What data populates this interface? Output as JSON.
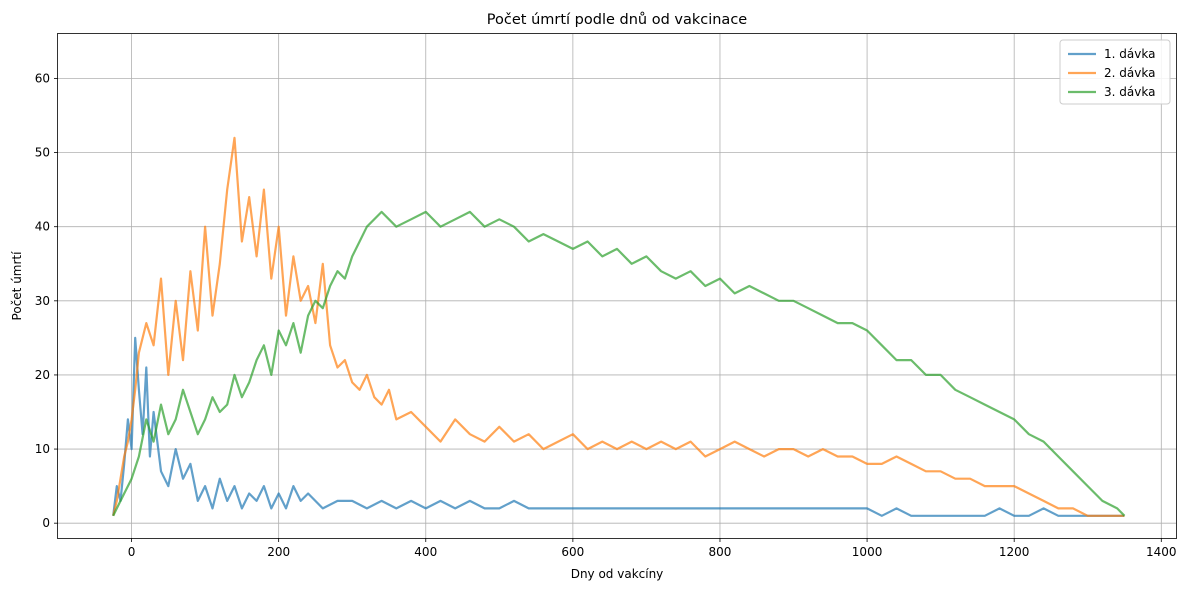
{
  "chart_data": {
    "type": "line",
    "title": "Počet úmrtí podle dnů od vakcinace",
    "xlabel": "Dny od vakcíny",
    "ylabel": "Počet úmrtí",
    "xlim": [
      -100,
      1420
    ],
    "ylim": [
      -2,
      66
    ],
    "xticks": [
      0,
      200,
      400,
      600,
      800,
      1000,
      1200,
      1400
    ],
    "yticks": [
      0,
      10,
      20,
      30,
      40,
      50,
      60
    ],
    "grid": true,
    "legend_position": "top-right",
    "series": [
      {
        "name": "1. dávka",
        "color": "#1f77b4",
        "points": [
          [
            -25,
            1
          ],
          [
            -20,
            5
          ],
          [
            -15,
            3
          ],
          [
            -10,
            8
          ],
          [
            -5,
            14
          ],
          [
            0,
            10
          ],
          [
            5,
            25
          ],
          [
            10,
            18
          ],
          [
            15,
            12
          ],
          [
            20,
            21
          ],
          [
            25,
            9
          ],
          [
            30,
            15
          ],
          [
            40,
            7
          ],
          [
            50,
            5
          ],
          [
            60,
            10
          ],
          [
            70,
            6
          ],
          [
            80,
            8
          ],
          [
            90,
            3
          ],
          [
            100,
            5
          ],
          [
            110,
            2
          ],
          [
            120,
            6
          ],
          [
            130,
            3
          ],
          [
            140,
            5
          ],
          [
            150,
            2
          ],
          [
            160,
            4
          ],
          [
            170,
            3
          ],
          [
            180,
            5
          ],
          [
            190,
            2
          ],
          [
            200,
            4
          ],
          [
            210,
            2
          ],
          [
            220,
            5
          ],
          [
            230,
            3
          ],
          [
            240,
            4
          ],
          [
            260,
            2
          ],
          [
            280,
            3
          ],
          [
            300,
            3
          ],
          [
            320,
            2
          ],
          [
            340,
            3
          ],
          [
            360,
            2
          ],
          [
            380,
            3
          ],
          [
            400,
            2
          ],
          [
            420,
            3
          ],
          [
            440,
            2
          ],
          [
            460,
            3
          ],
          [
            480,
            2
          ],
          [
            500,
            2
          ],
          [
            520,
            3
          ],
          [
            540,
            2
          ],
          [
            560,
            2
          ],
          [
            580,
            2
          ],
          [
            600,
            2
          ],
          [
            620,
            2
          ],
          [
            640,
            2
          ],
          [
            660,
            2
          ],
          [
            680,
            2
          ],
          [
            700,
            2
          ],
          [
            720,
            2
          ],
          [
            740,
            2
          ],
          [
            760,
            2
          ],
          [
            780,
            2
          ],
          [
            800,
            2
          ],
          [
            820,
            2
          ],
          [
            840,
            2
          ],
          [
            860,
            2
          ],
          [
            880,
            2
          ],
          [
            900,
            2
          ],
          [
            920,
            2
          ],
          [
            940,
            2
          ],
          [
            960,
            2
          ],
          [
            980,
            2
          ],
          [
            1000,
            2
          ],
          [
            1020,
            1
          ],
          [
            1040,
            2
          ],
          [
            1060,
            1
          ],
          [
            1080,
            1
          ],
          [
            1100,
            1
          ],
          [
            1120,
            1
          ],
          [
            1140,
            1
          ],
          [
            1160,
            1
          ],
          [
            1180,
            2
          ],
          [
            1200,
            1
          ],
          [
            1220,
            1
          ],
          [
            1240,
            2
          ],
          [
            1260,
            1
          ],
          [
            1280,
            1
          ],
          [
            1300,
            1
          ],
          [
            1320,
            1
          ],
          [
            1350,
            1
          ]
        ]
      },
      {
        "name": "2. dávka",
        "color": "#ff7f0e",
        "points": [
          [
            -25,
            1
          ],
          [
            -20,
            3
          ],
          [
            -15,
            6
          ],
          [
            -10,
            9
          ],
          [
            -5,
            11
          ],
          [
            0,
            14
          ],
          [
            5,
            18
          ],
          [
            10,
            23
          ],
          [
            20,
            27
          ],
          [
            30,
            24
          ],
          [
            40,
            33
          ],
          [
            50,
            20
          ],
          [
            60,
            30
          ],
          [
            70,
            22
          ],
          [
            80,
            34
          ],
          [
            90,
            26
          ],
          [
            100,
            40
          ],
          [
            110,
            28
          ],
          [
            120,
            35
          ],
          [
            130,
            45
          ],
          [
            140,
            52
          ],
          [
            150,
            38
          ],
          [
            160,
            44
          ],
          [
            170,
            36
          ],
          [
            180,
            45
          ],
          [
            190,
            33
          ],
          [
            200,
            40
          ],
          [
            210,
            28
          ],
          [
            220,
            36
          ],
          [
            230,
            30
          ],
          [
            240,
            32
          ],
          [
            250,
            27
          ],
          [
            260,
            35
          ],
          [
            270,
            24
          ],
          [
            280,
            21
          ],
          [
            290,
            22
          ],
          [
            300,
            19
          ],
          [
            310,
            18
          ],
          [
            320,
            20
          ],
          [
            330,
            17
          ],
          [
            340,
            16
          ],
          [
            350,
            18
          ],
          [
            360,
            14
          ],
          [
            380,
            15
          ],
          [
            400,
            13
          ],
          [
            420,
            11
          ],
          [
            440,
            14
          ],
          [
            460,
            12
          ],
          [
            480,
            11
          ],
          [
            500,
            13
          ],
          [
            520,
            11
          ],
          [
            540,
            12
          ],
          [
            560,
            10
          ],
          [
            580,
            11
          ],
          [
            600,
            12
          ],
          [
            620,
            10
          ],
          [
            640,
            11
          ],
          [
            660,
            10
          ],
          [
            680,
            11
          ],
          [
            700,
            10
          ],
          [
            720,
            11
          ],
          [
            740,
            10
          ],
          [
            760,
            11
          ],
          [
            780,
            9
          ],
          [
            800,
            10
          ],
          [
            820,
            11
          ],
          [
            840,
            10
          ],
          [
            860,
            9
          ],
          [
            880,
            10
          ],
          [
            900,
            10
          ],
          [
            920,
            9
          ],
          [
            940,
            10
          ],
          [
            960,
            9
          ],
          [
            980,
            9
          ],
          [
            1000,
            8
          ],
          [
            1020,
            8
          ],
          [
            1040,
            9
          ],
          [
            1060,
            8
          ],
          [
            1080,
            7
          ],
          [
            1100,
            7
          ],
          [
            1120,
            6
          ],
          [
            1140,
            6
          ],
          [
            1160,
            5
          ],
          [
            1180,
            5
          ],
          [
            1200,
            5
          ],
          [
            1220,
            4
          ],
          [
            1240,
            3
          ],
          [
            1260,
            2
          ],
          [
            1280,
            2
          ],
          [
            1300,
            1
          ],
          [
            1320,
            1
          ],
          [
            1350,
            1
          ]
        ]
      },
      {
        "name": "3. dávka",
        "color": "#2ca02c",
        "points": [
          [
            -25,
            1
          ],
          [
            -20,
            2
          ],
          [
            -10,
            4
          ],
          [
            0,
            6
          ],
          [
            10,
            9
          ],
          [
            20,
            14
          ],
          [
            30,
            11
          ],
          [
            40,
            16
          ],
          [
            50,
            12
          ],
          [
            60,
            14
          ],
          [
            70,
            18
          ],
          [
            80,
            15
          ],
          [
            90,
            12
          ],
          [
            100,
            14
          ],
          [
            110,
            17
          ],
          [
            120,
            15
          ],
          [
            130,
            16
          ],
          [
            140,
            20
          ],
          [
            150,
            17
          ],
          [
            160,
            19
          ],
          [
            170,
            22
          ],
          [
            180,
            24
          ],
          [
            190,
            20
          ],
          [
            200,
            26
          ],
          [
            210,
            24
          ],
          [
            220,
            27
          ],
          [
            230,
            23
          ],
          [
            240,
            28
          ],
          [
            250,
            30
          ],
          [
            260,
            29
          ],
          [
            270,
            32
          ],
          [
            280,
            34
          ],
          [
            290,
            33
          ],
          [
            300,
            36
          ],
          [
            310,
            38
          ],
          [
            320,
            40
          ],
          [
            340,
            42
          ],
          [
            360,
            40
          ],
          [
            380,
            41
          ],
          [
            400,
            42
          ],
          [
            420,
            40
          ],
          [
            440,
            41
          ],
          [
            460,
            42
          ],
          [
            480,
            40
          ],
          [
            500,
            41
          ],
          [
            520,
            40
          ],
          [
            540,
            38
          ],
          [
            560,
            39
          ],
          [
            580,
            38
          ],
          [
            600,
            37
          ],
          [
            620,
            38
          ],
          [
            640,
            36
          ],
          [
            660,
            37
          ],
          [
            680,
            35
          ],
          [
            700,
            36
          ],
          [
            720,
            34
          ],
          [
            740,
            33
          ],
          [
            760,
            34
          ],
          [
            780,
            32
          ],
          [
            800,
            33
          ],
          [
            820,
            31
          ],
          [
            840,
            32
          ],
          [
            860,
            31
          ],
          [
            880,
            30
          ],
          [
            900,
            30
          ],
          [
            920,
            29
          ],
          [
            940,
            28
          ],
          [
            960,
            27
          ],
          [
            980,
            27
          ],
          [
            1000,
            26
          ],
          [
            1020,
            24
          ],
          [
            1040,
            22
          ],
          [
            1060,
            22
          ],
          [
            1080,
            20
          ],
          [
            1100,
            20
          ],
          [
            1120,
            18
          ],
          [
            1140,
            17
          ],
          [
            1160,
            16
          ],
          [
            1180,
            15
          ],
          [
            1200,
            14
          ],
          [
            1220,
            12
          ],
          [
            1240,
            11
          ],
          [
            1260,
            9
          ],
          [
            1280,
            7
          ],
          [
            1300,
            5
          ],
          [
            1320,
            3
          ],
          [
            1340,
            2
          ],
          [
            1350,
            1
          ]
        ]
      }
    ]
  }
}
